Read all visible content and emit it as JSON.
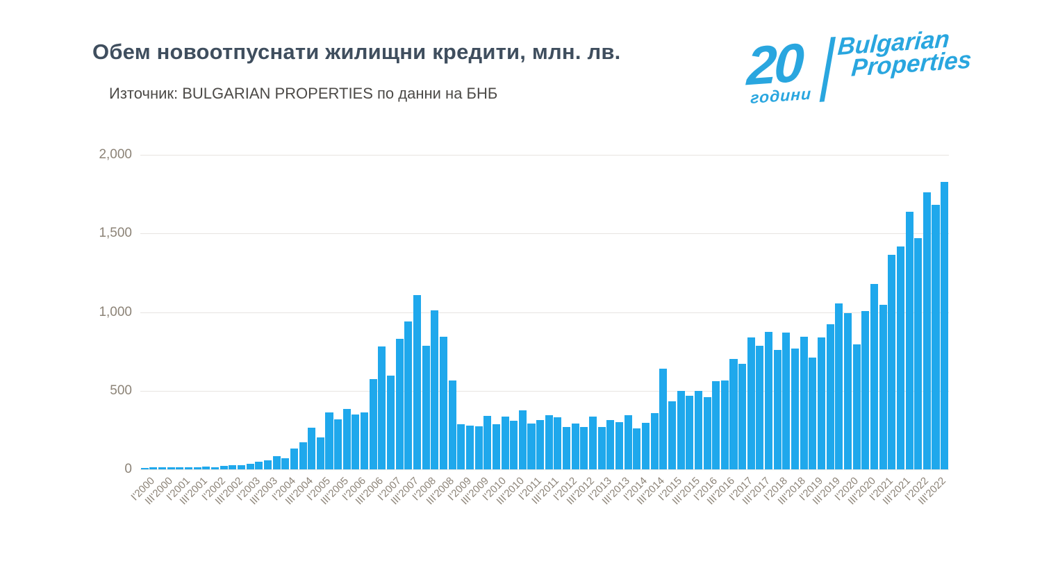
{
  "header": {
    "title": "Обем новоотпуснати жилищни кредити, млн. лв.",
    "subtitle": "Източник: BULGARIAN PROPERTIES по данни на БНБ"
  },
  "logo": {
    "years_number": "20",
    "years_word": "години",
    "brand_line1": "Bulgarian",
    "brand_line2": "Properties",
    "color": "#29A6DF"
  },
  "chart_data": {
    "type": "bar",
    "title": "Обем новоотпуснати жилищни кредити, млн. лв.",
    "source": "Източник: BULGARIAN PROPERTIES по данни на БНБ",
    "xlabel": "",
    "ylabel": "",
    "ylim": [
      0,
      2000
    ],
    "ytick_values": [
      0,
      500,
      1000,
      1500,
      2000
    ],
    "ytick_labels": [
      "0",
      "500",
      "1,000",
      "1,500",
      "2,000"
    ],
    "xtick_every": 2,
    "grid": true,
    "legend": false,
    "bar_color": "#1FA8EC",
    "categories": [
      "I'2000",
      "II'2000",
      "III'2000",
      "IV'2000",
      "I'2001",
      "II'2001",
      "III'2001",
      "IV'2001",
      "I'2002",
      "II'2002",
      "III'2002",
      "IV'2002",
      "I'2003",
      "II'2003",
      "III'2003",
      "IV'2003",
      "I'2004",
      "II'2004",
      "III'2004",
      "IV'2004",
      "I'2005",
      "II'2005",
      "III'2005",
      "IV'2005",
      "I'2006",
      "II'2006",
      "III'2006",
      "IV'2006",
      "I'2007",
      "II'2007",
      "III'2007",
      "IV'2007",
      "I'2008",
      "II'2008",
      "III'2008",
      "IV'2008",
      "I'2009",
      "II'2009",
      "III'2009",
      "IV'2009",
      "I'2010",
      "II'2010",
      "III'2010",
      "IV'2010",
      "I'2011",
      "II'2011",
      "III'2011",
      "IV'2011",
      "I'2012",
      "II'2012",
      "III'2012",
      "IV'2012",
      "I'2013",
      "II'2013",
      "III'2013",
      "IV'2013",
      "I'2014",
      "II'2014",
      "III'2014",
      "IV'2014",
      "I'2015",
      "II'2015",
      "III'2015",
      "IV'2015",
      "I'2016",
      "II'2016",
      "III'2016",
      "IV'2016",
      "I'2017",
      "II'2017",
      "III'2017",
      "IV'2017",
      "I'2018",
      "II'2018",
      "III'2018",
      "IV'2018",
      "I'2019",
      "II'2019",
      "III'2019",
      "IV'2019",
      "I'2020",
      "II'2020",
      "III'2020",
      "IV'2020",
      "I'2021",
      "II'2021",
      "III'2021",
      "IV'2021",
      "I'2022",
      "II'2022",
      "III'2022",
      "IV'2022"
    ],
    "values": [
      7,
      12,
      12,
      15,
      12,
      15,
      15,
      18,
      15,
      24,
      27,
      27,
      35,
      49,
      59,
      85,
      71,
      133,
      174,
      265,
      203,
      362,
      318,
      383,
      350,
      362,
      574,
      780,
      597,
      828,
      939,
      1108,
      788,
      1010,
      845,
      566,
      289,
      278,
      275,
      341,
      287,
      335,
      309,
      376,
      293,
      312,
      344,
      330,
      271,
      293,
      271,
      337,
      271,
      315,
      302,
      346,
      261,
      298,
      358,
      642,
      434,
      498,
      470,
      500,
      458,
      562,
      567,
      704,
      670,
      838,
      786,
      872,
      759,
      868,
      768,
      845,
      711,
      841,
      923,
      1054,
      994,
      793,
      1006,
      1180,
      1046,
      1363,
      1419,
      1637,
      1471,
      1763,
      1683,
      1827
    ]
  }
}
